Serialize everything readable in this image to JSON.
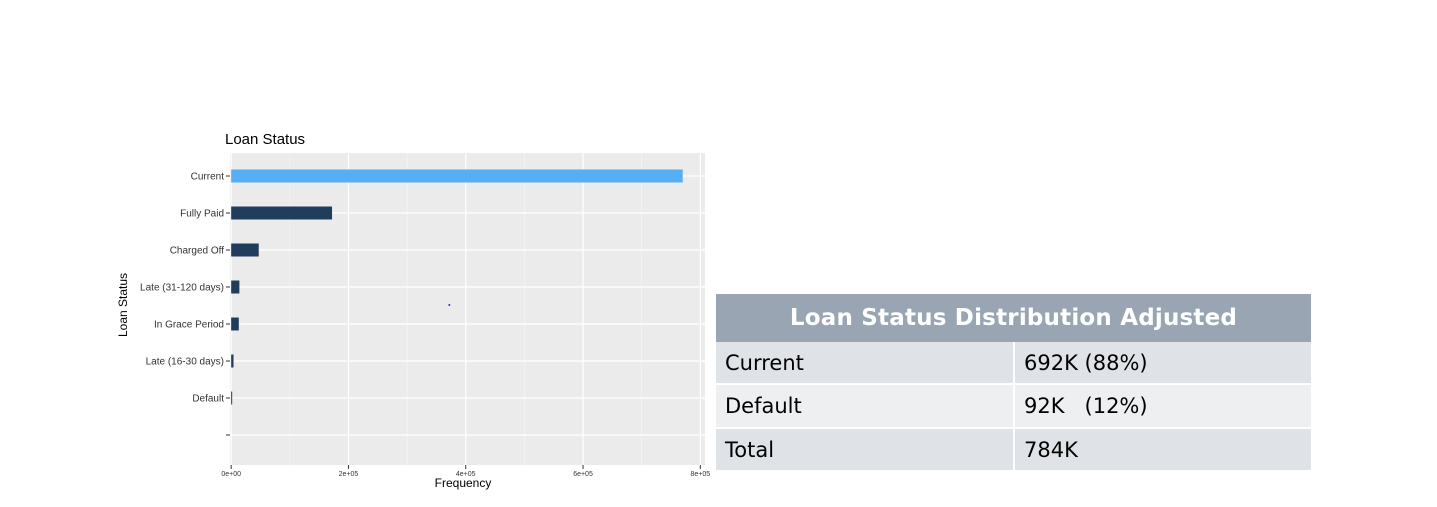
{
  "chart_data": {
    "type": "bar",
    "orientation": "horizontal",
    "title": "Loan Status",
    "xlabel": "Frequency",
    "ylabel": "Loan Status",
    "categories": [
      "Current",
      "Fully Paid",
      "Charged Off",
      "Late (31-120 days)",
      "In Grace Period",
      "Late (16-30 days)",
      "Default",
      ""
    ],
    "values": [
      770000,
      172000,
      47000,
      14000,
      13000,
      4000,
      1000,
      0
    ],
    "highlight_color": "#56aef5",
    "bar_color": "#213d5c",
    "panel_color": "#ebebeb",
    "x_ticks": [
      0,
      200000,
      400000,
      600000,
      800000
    ],
    "x_tick_labels": [
      "0e+00",
      "2e+05",
      "4e+05",
      "6e+05",
      "8e+05"
    ],
    "xlim": [
      -2000,
      808000
    ],
    "grid": true
  },
  "table": {
    "title": "Loan Status Distribution Adjusted",
    "rows": [
      {
        "label": "Current",
        "value": "692K (88%)"
      },
      {
        "label": "Default",
        "value": "92K   (12%)"
      },
      {
        "label": "Total",
        "value": "784K"
      }
    ]
  }
}
